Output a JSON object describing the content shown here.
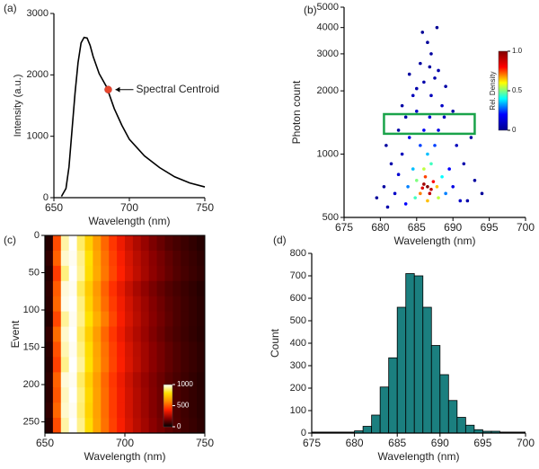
{
  "chart_data": [
    {
      "type": "line",
      "label": "(a)",
      "xlabel": "Wavelength (nm)",
      "ylabel": "Intensity (a.u.)",
      "xlim": [
        650,
        750
      ],
      "xticks": [
        650,
        700,
        750
      ],
      "ylim": [
        0,
        3000
      ],
      "yticks": [
        0,
        1000,
        2000,
        3000
      ],
      "color": "#000000",
      "x": [
        655,
        658,
        660,
        662,
        664,
        666,
        668,
        670,
        672,
        674,
        676,
        680,
        685,
        690,
        695,
        700,
        710,
        720,
        730,
        740,
        750
      ],
      "values": [
        20,
        150,
        500,
        1100,
        1700,
        2200,
        2520,
        2610,
        2600,
        2480,
        2300,
        2020,
        1800,
        1450,
        1180,
        950,
        680,
        490,
        340,
        240,
        175
      ],
      "annotation": {
        "text": "Spectral Centroid",
        "x": 686,
        "y": 1760,
        "color": "#e8472b"
      }
    },
    {
      "type": "scatter",
      "label": "(b)",
      "xlabel": "Wavelength (nm)",
      "ylabel": "Photon count",
      "log_y": true,
      "xlim": [
        675,
        700
      ],
      "xticks": [
        675,
        680,
        685,
        690,
        695,
        700
      ],
      "ylim": [
        500,
        5000
      ],
      "yticks": [
        500,
        1000,
        2000,
        3000,
        4000,
        5000
      ],
      "x": [
        686.5,
        686,
        687,
        686.8,
        685.8,
        687.3,
        686.2,
        685.5,
        687.8,
        686.5,
        686,
        688,
        685,
        684.8,
        687,
        688.5,
        684.5,
        686.5,
        689,
        683.8,
        687.5,
        685.5,
        689.5,
        683.5,
        686,
        688,
        684,
        690,
        682.5,
        686.8,
        685,
        688.5,
        687,
        684.5,
        691,
        682,
        690.5,
        683,
        686,
        688,
        687,
        685.5,
        689,
        683.5,
        691.5,
        681.5,
        692,
        681,
        693,
        680.5,
        686.5,
        684,
        690,
        682.5,
        692.5,
        680.8,
        694,
        679.5,
        687.5,
        685,
        688.8,
        683,
        687.8,
        685.8,
        686.8
      ],
      "y": [
        700,
        720,
        680,
        650,
        690,
        740,
        780,
        650,
        700,
        600,
        850,
        620,
        750,
        620,
        900,
        780,
        850,
        1000,
        650,
        700,
        1100,
        1100,
        850,
        580,
        1300,
        1300,
        1200,
        700,
        800,
        1500,
        1600,
        1700,
        1900,
        1900,
        600,
        650,
        1100,
        1000,
        2200,
        2500,
        3000,
        2700,
        2100,
        1500,
        900,
        900,
        600,
        560,
        750,
        700,
        3400,
        2400,
        1600,
        1300,
        1200,
        1100,
        650,
        620,
        2300,
        2050,
        1500,
        1700,
        4000,
        3800,
        2600
      ],
      "density": [
        1.0,
        0.95,
        0.9,
        0.9,
        0.85,
        0.8,
        0.75,
        0.7,
        0.65,
        0.65,
        0.55,
        0.55,
        0.5,
        0.45,
        0.45,
        0.4,
        0.35,
        0.35,
        0.3,
        0.3,
        0.25,
        0.25,
        0.2,
        0.2,
        0.18,
        0.15,
        0.15,
        0.15,
        0.12,
        0.12,
        0.1,
        0.1,
        0.08,
        0.08,
        0.1,
        0.1,
        0.08,
        0.08,
        0.05,
        0.05,
        0.03,
        0.03,
        0.04,
        0.05,
        0.05,
        0.05,
        0.05,
        0.05,
        0.03,
        0.03,
        0.02,
        0.03,
        0.04,
        0.04,
        0.03,
        0.03,
        0.02,
        0.02,
        0.05,
        0.05,
        0.08,
        0.04,
        0.01,
        0.01,
        0.03
      ],
      "colormap": [
        "#00008f",
        "#0000ff",
        "#00ffff",
        "#ffff00",
        "#ff0000",
        "#800000"
      ],
      "colorbar": {
        "label": "Rel. Density",
        "range": [
          0,
          1
        ],
        "ticks": [
          0,
          0.5,
          {
            "value": 1,
            "label": "1.0"
          }
        ]
      },
      "highlight_box": {
        "x": [
          680.5,
          693
        ],
        "y": [
          1250,
          1550
        ],
        "color": "#1aa34a"
      }
    },
    {
      "type": "heatmap",
      "label": "(c)",
      "xlabel": "Wavelength (nm)",
      "ylabel": "Event",
      "y_inverted": true,
      "xlim": [
        650,
        750
      ],
      "xticks": [
        650,
        700,
        750
      ],
      "ylim": [
        0,
        265
      ],
      "yticks": [
        0,
        50,
        100,
        150,
        200,
        250
      ],
      "colormap": [
        "#000000",
        "#8b0000",
        "#ff2000",
        "#ff8c00",
        "#ffe000",
        "#ffffff"
      ],
      "colorbar": {
        "range": [
          0,
          1000
        ],
        "ticks": [
          0,
          500,
          1000
        ]
      },
      "z": [
        [
          50,
          480,
          930,
          1000,
          880,
          760,
          640,
          530,
          440,
          370,
          310,
          260,
          220,
          180,
          150,
          120,
          100,
          85,
          70,
          55
        ],
        [
          70,
          520,
          960,
          990,
          910,
          800,
          660,
          550,
          460,
          390,
          330,
          280,
          240,
          200,
          170,
          140,
          115,
          95,
          80,
          65
        ],
        [
          55,
          450,
          900,
          1000,
          920,
          790,
          670,
          560,
          470,
          400,
          340,
          290,
          245,
          205,
          175,
          145,
          120,
          100,
          85,
          70
        ],
        [
          65,
          510,
          970,
          990,
          870,
          750,
          630,
          520,
          430,
          360,
          300,
          250,
          210,
          175,
          145,
          120,
          100,
          85,
          70,
          55
        ],
        [
          60,
          530,
          980,
          1000,
          900,
          770,
          650,
          540,
          450,
          380,
          320,
          270,
          230,
          190,
          160,
          130,
          110,
          90,
          75,
          60
        ],
        [
          50,
          470,
          920,
          990,
          910,
          800,
          680,
          570,
          470,
          390,
          330,
          280,
          235,
          195,
          165,
          135,
          110,
          90,
          75,
          60
        ],
        [
          75,
          540,
          960,
          1000,
          880,
          760,
          640,
          530,
          440,
          370,
          310,
          265,
          225,
          185,
          155,
          125,
          105,
          88,
          72,
          58
        ],
        [
          60,
          490,
          940,
          990,
          900,
          790,
          660,
          550,
          460,
          390,
          330,
          280,
          240,
          200,
          170,
          140,
          115,
          95,
          80,
          65
        ],
        [
          55,
          460,
          910,
          1000,
          920,
          800,
          670,
          560,
          465,
          395,
          335,
          285,
          240,
          200,
          170,
          140,
          115,
          95,
          80,
          65
        ],
        [
          65,
          520,
          970,
          990,
          880,
          760,
          640,
          530,
          440,
          370,
          310,
          260,
          220,
          185,
          155,
          125,
          105,
          88,
          72,
          58
        ],
        [
          60,
          500,
          950,
          1000,
          900,
          780,
          650,
          540,
          450,
          380,
          320,
          270,
          230,
          190,
          160,
          130,
          110,
          90,
          75,
          60
        ],
        [
          70,
          530,
          960,
          990,
          890,
          770,
          650,
          540,
          450,
          380,
          320,
          270,
          230,
          190,
          160,
          130,
          110,
          90,
          75,
          60
        ],
        [
          55,
          480,
          930,
          1000,
          910,
          790,
          660,
          550,
          460,
          390,
          330,
          280,
          240,
          200,
          170,
          140,
          115,
          95,
          80,
          65
        ]
      ]
    },
    {
      "type": "histogram",
      "label": "(d)",
      "xlabel": "Wavelength (nm)",
      "ylabel": "Count",
      "color": "#1b7f7f",
      "xlim": [
        675,
        700
      ],
      "xticks": [
        675,
        680,
        685,
        690,
        695,
        700
      ],
      "ylim": [
        0,
        800
      ],
      "yticks": [
        0,
        100,
        200,
        300,
        400,
        500,
        600,
        700,
        800
      ],
      "bins": [
        679,
        680,
        681,
        682,
        683,
        684,
        685,
        686,
        687,
        688,
        689,
        690,
        691,
        692,
        693,
        694,
        695,
        696,
        697,
        698
      ],
      "counts": [
        3,
        10,
        30,
        80,
        205,
        335,
        560,
        710,
        700,
        560,
        390,
        260,
        145,
        70,
        35,
        15,
        8,
        8,
        3
      ]
    }
  ]
}
